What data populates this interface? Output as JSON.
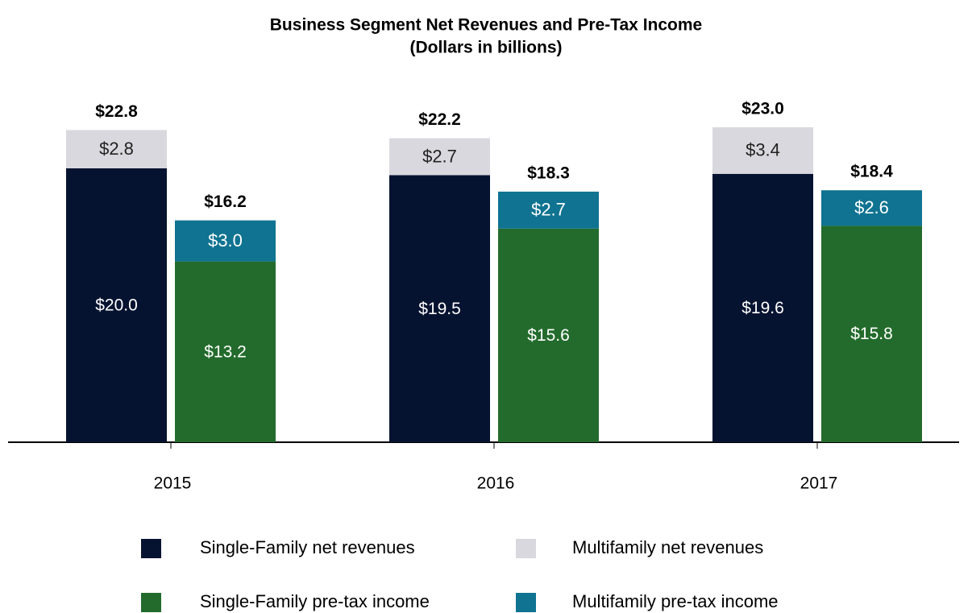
{
  "chart_data": {
    "type": "stacked-bar",
    "title": "Business Segment Net Revenues and Pre-Tax Income",
    "subtitle": "(Dollars in billions)",
    "categories": [
      "2015",
      "2016",
      "2017"
    ],
    "stacks": [
      {
        "series": [
          {
            "name": "Single-Family net revenues",
            "color": "#061330",
            "values": [
              20.0,
              19.5,
              19.6
            ],
            "value_labels": [
              "$20.0",
              "$19.5",
              "$19.6"
            ]
          },
          {
            "name": "Multifamily net revenues",
            "color": "#d9d8de",
            "values": [
              2.8,
              2.7,
              3.4
            ],
            "value_labels": [
              "$2.8",
              "$2.7",
              "$3.4"
            ]
          }
        ],
        "totals": {
          "values": [
            22.8,
            22.2,
            23.0
          ],
          "value_labels": [
            "$22.8",
            "$22.2",
            "$23.0"
          ]
        }
      },
      {
        "series": [
          {
            "name": "Single-Family pre-tax income",
            "color": "#236b2c",
            "values": [
              13.2,
              15.6,
              15.8
            ],
            "value_labels": [
              "$13.2",
              "$15.6",
              "$15.8"
            ]
          },
          {
            "name": "Multifamily pre-tax income",
            "color": "#0f7391",
            "values": [
              3.0,
              2.7,
              2.6
            ],
            "value_labels": [
              "$3.0",
              "$2.7",
              "$2.6"
            ]
          }
        ],
        "totals": {
          "values": [
            16.2,
            18.3,
            18.4
          ],
          "value_labels": [
            "$16.2",
            "$18.3",
            "$18.4"
          ]
        }
      }
    ]
  }
}
